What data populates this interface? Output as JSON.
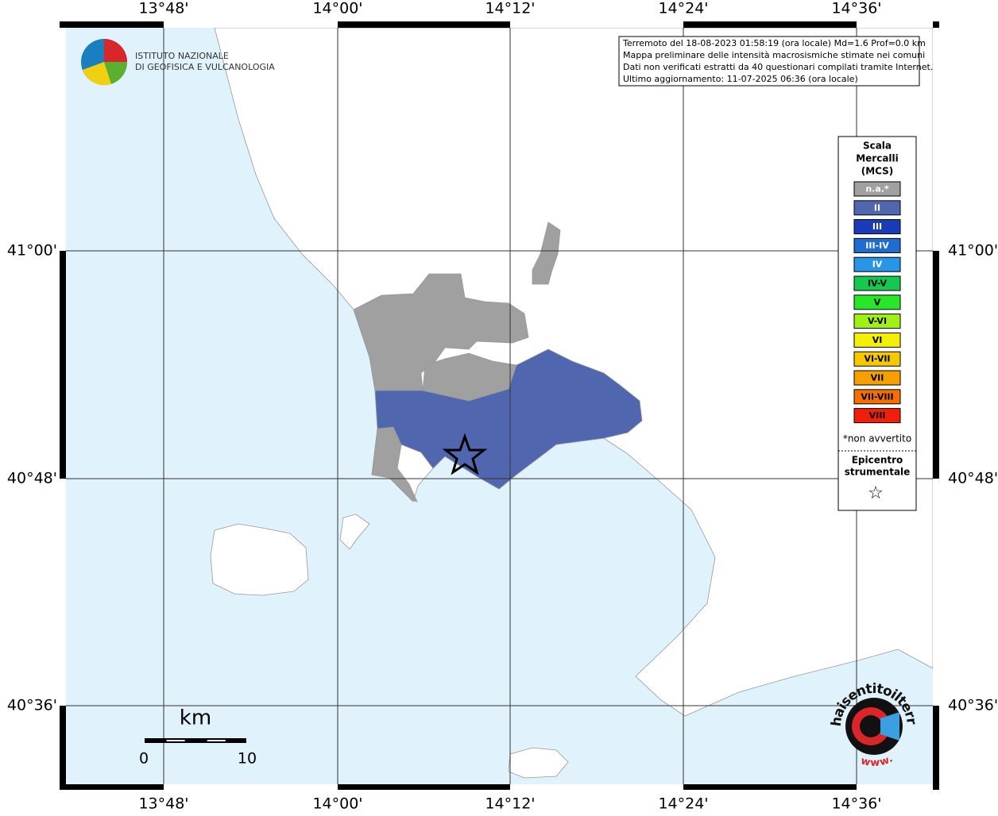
{
  "map": {
    "info": [
      "Terremoto del 18-08-2023 01:58:19 (ora locale) Md=1.6 Prof=0.0 km",
      "Mappa preliminare delle intensità macrosismiche stimate nei comuni",
      "Dati non verificati estratti da 40 questionari compilati tramite Internet.",
      "Ultimo aggiornamento: 11-07-2025 06:36 (ora locale)"
    ],
    "logo": [
      "ISTITUTO NAZIONALE",
      "DI GEOFISICA E VULCANOLOGIA"
    ],
    "lon_labels": [
      "13°48'",
      "14°00'",
      "14°12'",
      "14°24'",
      "14°36'"
    ],
    "lat_labels": [
      "41°00'",
      "40°48'",
      "40°36'"
    ],
    "legend": {
      "title": [
        "Scala",
        "Mercalli",
        "(MCS)"
      ],
      "items": [
        {
          "label": "n.a.*",
          "color": "#a0a0a0",
          "text_color": "#ffffff"
        },
        {
          "label": "II",
          "color": "#5066ae",
          "text_color": "#ffffff"
        },
        {
          "label": "III",
          "color": "#1a3cb8",
          "text_color": "#ffffff"
        },
        {
          "label": "III-IV",
          "color": "#1e6ed2",
          "text_color": "#ffffff"
        },
        {
          "label": "IV",
          "color": "#2896e6",
          "text_color": "#ffffff"
        },
        {
          "label": "IV-V",
          "color": "#14c850",
          "text_color": "#000000"
        },
        {
          "label": "V",
          "color": "#28e628",
          "text_color": "#000000"
        },
        {
          "label": "V-VI",
          "color": "#a0f014",
          "text_color": "#000000"
        },
        {
          "label": "VI",
          "color": "#f5f000",
          "text_color": "#000000"
        },
        {
          "label": "VI-VII",
          "color": "#f5c800",
          "text_color": "#000000"
        },
        {
          "label": "VII",
          "color": "#f5a000",
          "text_color": "#000000"
        },
        {
          "label": "VII-VIII",
          "color": "#f56e00",
          "text_color": "#000000"
        },
        {
          "label": "VIII",
          "color": "#f01e0a",
          "text_color": "#000000"
        }
      ],
      "note": "*non avvertito",
      "epicenter": [
        "Epicentro",
        "strumentale"
      ],
      "star": "☆"
    },
    "scale": {
      "unit": "km",
      "ticks": [
        0,
        10
      ]
    },
    "watermark": {
      "site": "haisentitoilterremoto.it",
      "www": "www."
    }
  }
}
